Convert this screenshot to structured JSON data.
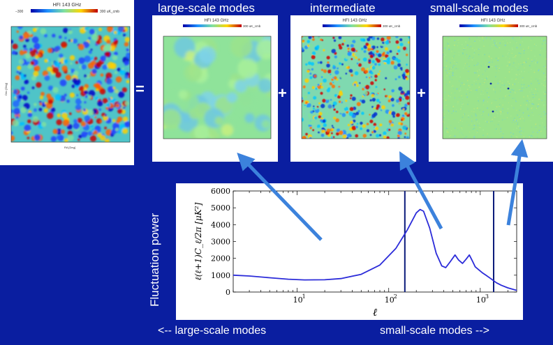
{
  "maps": {
    "full": {
      "title": "HFI 143 GHz",
      "scale_left": "−300",
      "scale_right": "300 uK_cmb",
      "xlabel": "RA [Deg]",
      "ylabel": "Dec [Deg]"
    },
    "large": {
      "heading": "large-scale modes",
      "title": "HFI 143 GHz",
      "scale_right": "300 uK_cmb"
    },
    "intermediate": {
      "heading": "intermediate",
      "title": "HFI 143 GHz",
      "scale_right": "300 uK_cmb"
    },
    "small": {
      "heading": "small-scale modes",
      "title": "HFI 143 GHz",
      "scale_right": "300 uK_cmb"
    }
  },
  "operators": {
    "equals": "=",
    "plus1": "+",
    "plus2": "+"
  },
  "spectrum": {
    "side_label": "Fluctuation power",
    "ylabel": "ℓ(ℓ+1)C_ℓ/2π [μK²]",
    "xlabel": "ℓ",
    "bottom_left": "<-- large-scale modes",
    "bottom_right": "small-scale modes -->"
  },
  "chart_data": {
    "type": "line",
    "x_scale": "log",
    "xlim": [
      2,
      2500
    ],
    "ylim": [
      0,
      6000
    ],
    "yticks": [
      0,
      1000,
      2000,
      3000,
      4000,
      5000,
      6000
    ],
    "xticks": [
      "10^1",
      "10^2",
      "10^3"
    ],
    "xlabel": "ℓ",
    "ylabel": "ℓ(ℓ+1)C_ℓ/2π [μK²]",
    "x": [
      2,
      3,
      5,
      8,
      12,
      20,
      30,
      50,
      80,
      120,
      160,
      200,
      220,
      240,
      280,
      330,
      380,
      420,
      470,
      530,
      580,
      640,
      700,
      760,
      820,
      880,
      950,
      1050,
      1150,
      1300,
      1500,
      1700,
      2000,
      2500
    ],
    "values": [
      1000,
      950,
      850,
      760,
      720,
      730,
      800,
      1050,
      1600,
      2600,
      3700,
      4700,
      4900,
      4800,
      3800,
      2300,
      1550,
      1450,
      1800,
      2200,
      1900,
      1700,
      1950,
      2200,
      1850,
      1500,
      1350,
      1150,
      1000,
      800,
      550,
      400,
      250,
      100
    ],
    "vertical_lines": [
      150,
      1400
    ],
    "color": "#2b2bd9"
  }
}
